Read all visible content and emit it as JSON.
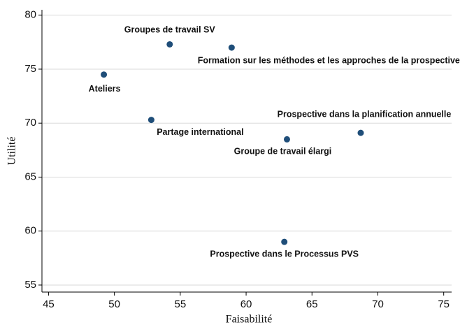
{
  "chart_data": {
    "type": "scatter",
    "x_label": "Faisabilité",
    "y_label": "Utilité",
    "labels": [
      "Groupes de travail SV",
      "Formation sur les méthodes et les approches de la prospective",
      "Ateliers",
      "Partage international",
      "Groupe de travail élargi",
      "Prospective dans la planification annuelle",
      "Prospective dans le Processus PVS"
    ],
    "x": [
      54.2,
      58.9,
      49.2,
      52.8,
      63.1,
      68.7,
      62.9
    ],
    "values": [
      77.3,
      77.0,
      74.5,
      70.3,
      68.5,
      69.1,
      59.0
    ],
    "color": "#1f4e79",
    "xlim": [
      44.5,
      75.6
    ],
    "xticks": [
      45,
      50,
      55,
      60,
      65,
      70,
      75
    ],
    "ylim": [
      54.35,
      80.5
    ],
    "yticks": [
      55,
      60,
      65,
      70,
      75,
      80
    ],
    "grid": true
  }
}
